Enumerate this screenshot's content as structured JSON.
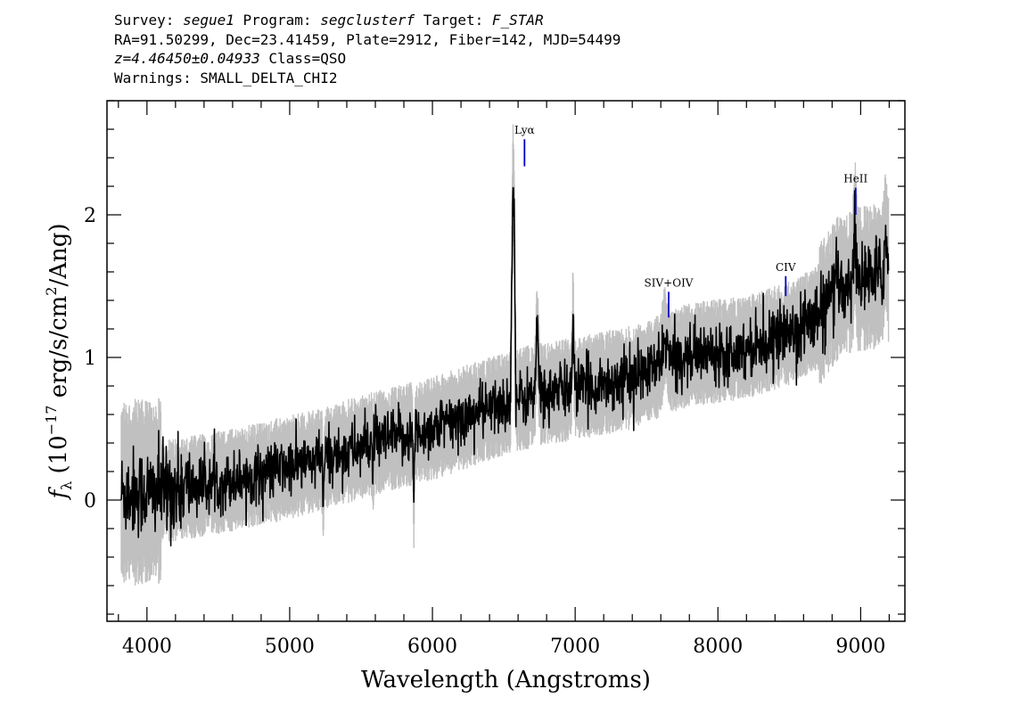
{
  "header": {
    "line1": {
      "survey_label": "Survey: ",
      "survey": "segue1",
      "program_label": " Program: ",
      "program": "segclusterf",
      "target_label": " Target: ",
      "target": "F_STAR"
    },
    "line2": "RA=91.50299, Dec=23.41459, Plate=2912, Fiber=142, MJD=54499",
    "line3": {
      "z": "z=4.46450±0.04933",
      "class": " Class=QSO"
    },
    "line4": "Warnings: SMALL_DELTA_CHI2"
  },
  "chart_data": {
    "type": "line",
    "xlabel": "Wavelength (Angstroms)",
    "ylabel_prefix": "f",
    "ylabel_sub": "λ",
    "ylabel_main": " (10",
    "ylabel_exp": "−17",
    "ylabel_units": " erg/s/cm",
    "ylabel_units_exp": "2",
    "ylabel_end": "/Ang)",
    "xlim": [
      3720,
      9310
    ],
    "ylim": [
      -0.85,
      2.8
    ],
    "xticks": [
      4000,
      5000,
      6000,
      7000,
      8000,
      9000
    ],
    "yticks": [
      0,
      1,
      2
    ],
    "x_minor_step": 200,
    "y_minor_step": 0.2,
    "line_labels": [
      {
        "label": "Lyα",
        "x": 6645,
        "y_top": 2.53,
        "y_bottom": 2.34
      },
      {
        "label": "SIV+OIV",
        "x": 7655,
        "y_top": 1.46,
        "y_bottom": 1.28
      },
      {
        "label": "CIV",
        "x": 8475,
        "y_top": 1.57,
        "y_bottom": 1.43
      },
      {
        "label": "HeII",
        "x": 8965,
        "y_top": 2.19,
        "y_bottom": 2.0
      }
    ],
    "continuum": [
      [
        3820,
        0.05
      ],
      [
        4200,
        0.07
      ],
      [
        4600,
        0.14
      ],
      [
        5000,
        0.23
      ],
      [
        5200,
        0.28
      ],
      [
        5600,
        0.4
      ],
      [
        6000,
        0.5
      ],
      [
        6400,
        0.64
      ],
      [
        6700,
        0.73
      ],
      [
        7000,
        0.78
      ],
      [
        7400,
        0.86
      ],
      [
        7800,
        1.02
      ],
      [
        8200,
        1.07
      ],
      [
        8500,
        1.17
      ],
      [
        8700,
        1.28
      ],
      [
        8850,
        1.5
      ],
      [
        9000,
        1.55
      ],
      [
        9190,
        1.58
      ]
    ],
    "features": [
      {
        "x": 6565,
        "amp": 1.55,
        "w": 6
      },
      {
        "x": 6575,
        "amp": 0.8,
        "w": 4
      },
      {
        "x": 6555,
        "amp": 0.6,
        "w": 3
      },
      {
        "x": 6735,
        "amp": 0.45,
        "w": 8
      },
      {
        "x": 6985,
        "amp": 0.55,
        "w": 5
      },
      {
        "x": 7630,
        "amp": 0.2,
        "w": 15
      },
      {
        "x": 8960,
        "amp": 0.35,
        "w": 8
      },
      {
        "x": 9175,
        "amp": 0.25,
        "w": 10
      },
      {
        "x": 5870,
        "amp": -0.45,
        "w": 4
      },
      {
        "x": 5235,
        "amp": -0.3,
        "w": 4
      },
      {
        "x": 5585,
        "amp": -0.15,
        "w": 3
      }
    ],
    "x_end": 9195,
    "noise_model": "spectrum",
    "noise": {
      "flux": 0.1,
      "error": 0.28
    },
    "series": [
      {
        "role": "flux",
        "color": "#000000"
      },
      {
        "role": "error",
        "color": "#c0c0c0"
      }
    ],
    "line_label_color": "#0000cc"
  }
}
